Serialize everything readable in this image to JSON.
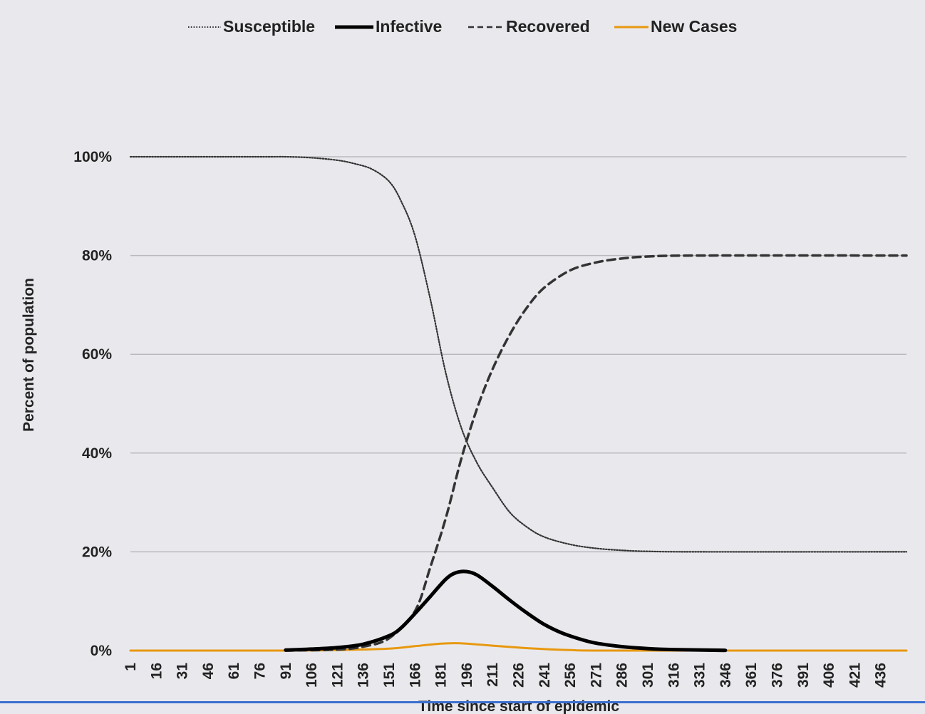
{
  "chart_data": {
    "type": "line",
    "title": "",
    "xlabel": "Time since start of epidemic",
    "ylabel": "Percent of population",
    "ylim": [
      0,
      100
    ],
    "xlim": [
      1,
      451
    ],
    "grid": true,
    "legend_position": "top",
    "y_ticks": [
      "0%",
      "20%",
      "40%",
      "60%",
      "80%",
      "100%"
    ],
    "x_ticks": [
      "1",
      "16",
      "31",
      "46",
      "61",
      "76",
      "91",
      "106",
      "121",
      "136",
      "151",
      "166",
      "181",
      "196",
      "211",
      "226",
      "241",
      "256",
      "271",
      "286",
      "301",
      "316",
      "331",
      "346",
      "361",
      "376",
      "391",
      "406",
      "421",
      "436"
    ],
    "series": [
      {
        "name": "Susceptible",
        "style": "dotted",
        "color": "#333333",
        "points": [
          [
            1,
            100
          ],
          [
            76,
            100
          ],
          [
            91,
            100
          ],
          [
            106,
            99.8
          ],
          [
            121,
            99.3
          ],
          [
            131,
            98.6
          ],
          [
            141,
            97.5
          ],
          [
            151,
            95
          ],
          [
            158,
            91
          ],
          [
            166,
            84
          ],
          [
            175,
            71
          ],
          [
            184,
            56
          ],
          [
            193,
            45
          ],
          [
            202,
            38
          ],
          [
            211,
            33
          ],
          [
            221,
            28
          ],
          [
            231,
            25
          ],
          [
            241,
            23
          ],
          [
            256,
            21.5
          ],
          [
            271,
            20.7
          ],
          [
            286,
            20.3
          ],
          [
            301,
            20.1
          ],
          [
            331,
            20
          ],
          [
            451,
            20
          ]
        ]
      },
      {
        "name": "Infective",
        "style": "solid",
        "color": "#000000",
        "points": [
          [
            91,
            0.1
          ],
          [
            106,
            0.3
          ],
          [
            121,
            0.6
          ],
          [
            136,
            1.3
          ],
          [
            151,
            3
          ],
          [
            158,
            4.6
          ],
          [
            166,
            7.5
          ],
          [
            175,
            11
          ],
          [
            184,
            14.5
          ],
          [
            190,
            15.8
          ],
          [
            196,
            16
          ],
          [
            202,
            15.3
          ],
          [
            211,
            13
          ],
          [
            221,
            10.2
          ],
          [
            231,
            7.6
          ],
          [
            241,
            5.3
          ],
          [
            251,
            3.6
          ],
          [
            261,
            2.4
          ],
          [
            271,
            1.5
          ],
          [
            286,
            0.8
          ],
          [
            301,
            0.4
          ],
          [
            316,
            0.2
          ],
          [
            346,
            0.05
          ]
        ]
      },
      {
        "name": "Recovered",
        "style": "dashed",
        "color": "#333333",
        "points": [
          [
            91,
            0
          ],
          [
            121,
            0.2
          ],
          [
            136,
            0.8
          ],
          [
            151,
            2.5
          ],
          [
            166,
            8
          ],
          [
            175,
            17
          ],
          [
            184,
            27
          ],
          [
            193,
            39
          ],
          [
            202,
            49
          ],
          [
            211,
            57
          ],
          [
            221,
            64
          ],
          [
            231,
            69.5
          ],
          [
            241,
            73.5
          ],
          [
            256,
            77
          ],
          [
            271,
            78.6
          ],
          [
            286,
            79.4
          ],
          [
            301,
            79.8
          ],
          [
            331,
            80
          ],
          [
            451,
            80
          ]
        ]
      },
      {
        "name": "New Cases",
        "style": "solid",
        "color": "#e8980e",
        "points": [
          [
            1,
            0
          ],
          [
            91,
            0
          ],
          [
            121,
            0.1
          ],
          [
            151,
            0.4
          ],
          [
            166,
            0.9
          ],
          [
            181,
            1.4
          ],
          [
            189,
            1.5
          ],
          [
            196,
            1.4
          ],
          [
            211,
            1
          ],
          [
            226,
            0.6
          ],
          [
            241,
            0.3
          ],
          [
            256,
            0.1
          ],
          [
            286,
            0
          ],
          [
            451,
            0
          ]
        ]
      }
    ]
  }
}
